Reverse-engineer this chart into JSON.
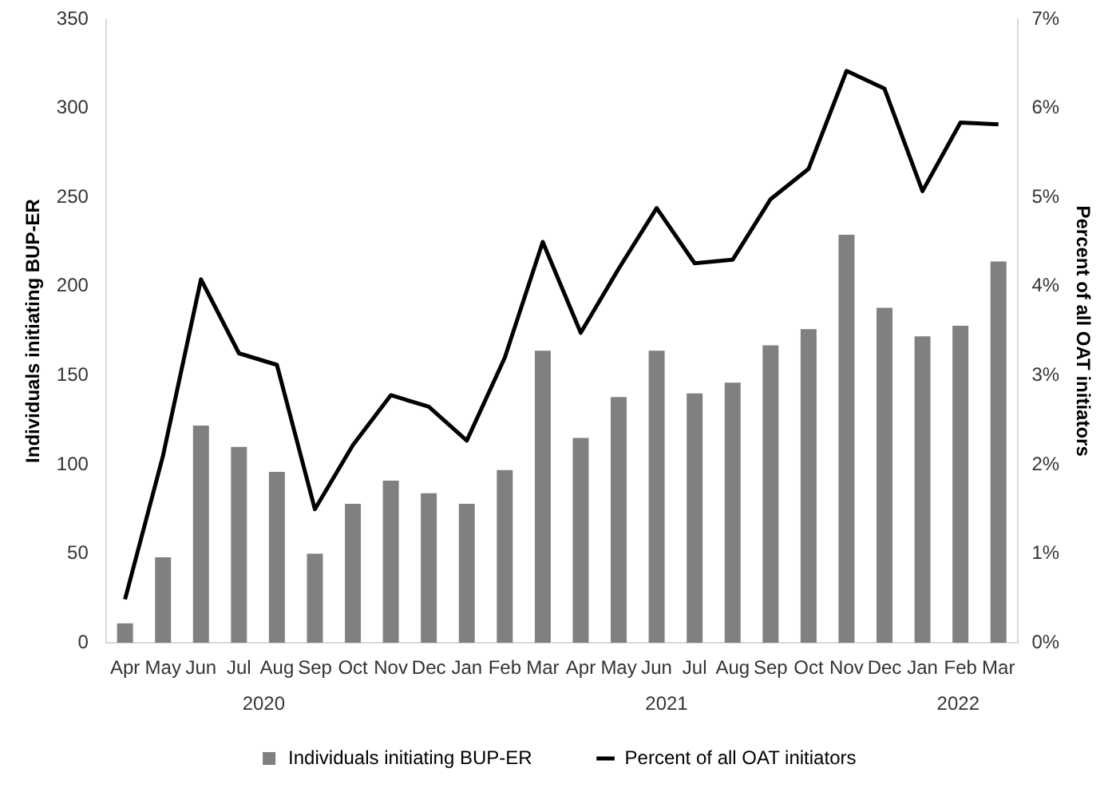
{
  "chart_data": {
    "type": "bar",
    "ylabel": "Individuals initiating BUP-ER",
    "y2label": "Percent of all OAT initiators",
    "categories": [
      "Apr",
      "May",
      "Jun",
      "Jul",
      "Aug",
      "Sep",
      "Oct",
      "Nov",
      "Dec",
      "Jan",
      "Feb",
      "Mar",
      "Apr",
      "May",
      "Jun",
      "Jul",
      "Aug",
      "Sep",
      "Oct",
      "Nov",
      "Dec",
      "Jan",
      "Feb",
      "Mar"
    ],
    "series": [
      {
        "name": "Individuals initiating BUP-ER",
        "color": "#808080",
        "values": [
          11,
          48,
          122,
          110,
          96,
          50,
          78,
          91,
          84,
          78,
          97,
          164,
          115,
          138,
          164,
          140,
          146,
          167,
          176,
          229,
          188,
          172,
          178,
          214
        ]
      },
      {
        "name": "Percent of all OAT initiators",
        "type": "line",
        "axis": "y2",
        "color": "#000000",
        "values": [
          0.49,
          2.1,
          4.08,
          3.25,
          3.12,
          1.5,
          2.22,
          2.78,
          2.65,
          2.27,
          3.2,
          4.5,
          3.48,
          4.2,
          4.88,
          4.26,
          4.3,
          4.98,
          5.32,
          6.42,
          6.22,
          5.07,
          5.84,
          5.82
        ]
      }
    ],
    "ylim": [
      0,
      350
    ],
    "yticks": [
      0,
      50,
      100,
      150,
      200,
      250,
      300,
      350
    ],
    "y2lim": [
      0,
      7
    ],
    "y2ticks": [
      {
        "value": 0,
        "label": "0%"
      },
      {
        "value": 1,
        "label": "1%"
      },
      {
        "value": 2,
        "label": "2%"
      },
      {
        "value": 3,
        "label": "3%"
      },
      {
        "value": 4,
        "label": "4%"
      },
      {
        "value": 5,
        "label": "5%"
      },
      {
        "value": 6,
        "label": "6%"
      },
      {
        "value": 7,
        "label": "7%"
      }
    ],
    "annotations": [
      "2020",
      "2021",
      "2022"
    ],
    "grid": false,
    "legend": "bottom",
    "marker": "none",
    "line_style": "solid"
  }
}
